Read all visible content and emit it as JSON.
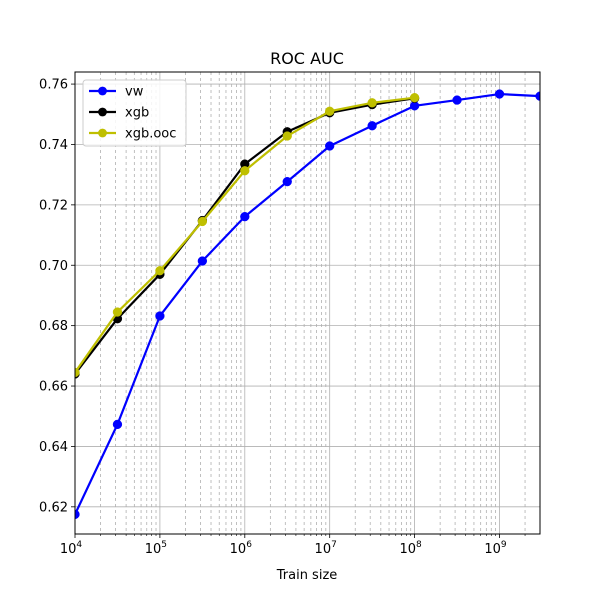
{
  "chart_data": {
    "type": "line",
    "title": "ROC AUC",
    "xlabel": "Train size",
    "ylabel": "",
    "xscale": "log",
    "xlim": [
      10000,
      3000000000
    ],
    "ylim": [
      0.611,
      0.764
    ],
    "grid": {
      "major": true,
      "minor_x": true
    },
    "x_ticks": [
      {
        "value": 10000,
        "base": "10",
        "exp": "4"
      },
      {
        "value": 100000,
        "base": "10",
        "exp": "5"
      },
      {
        "value": 1000000,
        "base": "10",
        "exp": "6"
      },
      {
        "value": 10000000,
        "base": "10",
        "exp": "7"
      },
      {
        "value": 100000000,
        "base": "10",
        "exp": "8"
      },
      {
        "value": 1000000000,
        "base": "10",
        "exp": "9"
      }
    ],
    "y_ticks": [
      {
        "value": 0.62,
        "label": "0.62"
      },
      {
        "value": 0.64,
        "label": "0.64"
      },
      {
        "value": 0.66,
        "label": "0.66"
      },
      {
        "value": 0.68,
        "label": "0.68"
      },
      {
        "value": 0.7,
        "label": "0.70"
      },
      {
        "value": 0.72,
        "label": "0.72"
      },
      {
        "value": 0.74,
        "label": "0.74"
      },
      {
        "value": 0.76,
        "label": "0.76"
      }
    ],
    "legend_position": "top-left",
    "series": [
      {
        "name": "vw",
        "color": "#0000ff",
        "x": [
          10000,
          31623,
          100000,
          316228,
          1000000,
          3162278,
          10000000,
          31622777,
          100000000,
          316227766,
          1000000000,
          3000000000
        ],
        "y": [
          0.6175,
          0.6473,
          0.6832,
          0.7014,
          0.7161,
          0.7277,
          0.7395,
          0.7462,
          0.7528,
          0.7547,
          0.7567,
          0.756
        ]
      },
      {
        "name": "xgb",
        "color": "#000000",
        "x": [
          10000,
          31623,
          100000,
          316228,
          1000000,
          3162278,
          10000000,
          31622777,
          100000000
        ],
        "y": [
          0.664,
          0.6823,
          0.697,
          0.7148,
          0.7335,
          0.7442,
          0.7505,
          0.7532,
          0.7553
        ]
      },
      {
        "name": "xgb.ooc",
        "color": "#bfbf00",
        "x": [
          10000,
          31623,
          100000,
          316228,
          1000000,
          3162278,
          10000000,
          31622777,
          100000000
        ],
        "y": [
          0.6645,
          0.6845,
          0.6982,
          0.7145,
          0.7313,
          0.7428,
          0.751,
          0.7538,
          0.7555
        ]
      }
    ]
  }
}
